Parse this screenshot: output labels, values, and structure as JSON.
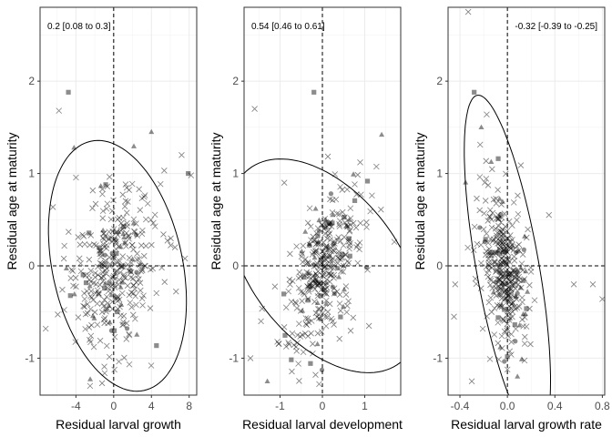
{
  "chart_data": [
    {
      "type": "scatter",
      "annotation": "0.2 [0.08 to 0.3]",
      "xlabel": "Residual larval growth",
      "ylabel": "Residual age at maturity",
      "xlim": [
        -7.8,
        8.8
      ],
      "ylim": [
        -1.4,
        2.8
      ],
      "x_ticks": [
        -4,
        0,
        4,
        8
      ],
      "x_tick_labels": [
        "-4",
        "0",
        "4",
        "8"
      ],
      "y_ticks": [
        -1,
        0,
        1,
        2
      ],
      "y_tick_labels": [
        "-1",
        "0",
        "1",
        "2"
      ],
      "grid": true,
      "reference_lines": {
        "x": 0,
        "y": 0
      },
      "ellipse": {
        "cx": 0.4,
        "cy": 0.0,
        "rx": 6.9,
        "ry": 1.38,
        "rotation_deg": 12
      },
      "points": {
        "cx": -0.3,
        "cy": -0.05,
        "sx": 2.4,
        "sy": 0.46,
        "rho": 0.2,
        "n": 360,
        "extra": [
          {
            "x": -4.8,
            "y": 1.88,
            "shape": "square"
          },
          {
            "x": -5.8,
            "y": 1.68,
            "shape": "cross"
          },
          {
            "x": -7.2,
            "y": -0.68,
            "shape": "cross"
          },
          {
            "x": 7.9,
            "y": 1.0,
            "shape": "square"
          },
          {
            "x": 8.2,
            "y": 0.98,
            "shape": "cross"
          },
          {
            "x": 7.2,
            "y": 1.2,
            "shape": "cross"
          },
          {
            "x": -2.5,
            "y": -1.3,
            "shape": "cross"
          },
          {
            "x": 4.0,
            "y": 1.45,
            "shape": "triangle"
          },
          {
            "x": -4.2,
            "y": 1.28,
            "shape": "triangle"
          },
          {
            "x": 6.5,
            "y": 0.2,
            "shape": "cross"
          }
        ]
      }
    },
    {
      "type": "scatter",
      "annotation": "0.54 [0.46 to 0.61]",
      "xlabel": "Residual larval development",
      "ylabel": "Residual age at maturity",
      "xlim": [
        -1.85,
        1.85
      ],
      "ylim": [
        -1.4,
        2.8
      ],
      "x_ticks": [
        -1,
        0,
        1
      ],
      "x_tick_labels": [
        "-1",
        "0",
        "1"
      ],
      "y_ticks": [
        -1,
        0,
        1,
        2
      ],
      "y_tick_labels": [
        "-1",
        "0",
        "1",
        "2"
      ],
      "grid": true,
      "reference_lines": {
        "x": 0,
        "y": 0
      },
      "ellipse": {
        "cx": 0.05,
        "cy": 0.0,
        "rx": 1.74,
        "ry": 1.33,
        "rotation_deg": 38
      },
      "points": {
        "cx": 0.0,
        "cy": -0.05,
        "sx": 0.5,
        "sy": 0.46,
        "rho": 0.6,
        "n": 360,
        "extra": [
          {
            "x": -0.2,
            "y": 1.88,
            "shape": "square"
          },
          {
            "x": -1.6,
            "y": 1.7,
            "shape": "cross"
          },
          {
            "x": 1.4,
            "y": 1.42,
            "shape": "triangle"
          },
          {
            "x": -1.45,
            "y": -0.6,
            "shape": "cross"
          },
          {
            "x": -1.7,
            "y": -1.0,
            "shape": "cross"
          },
          {
            "x": 1.7,
            "y": 0.26,
            "shape": "cross"
          },
          {
            "x": -0.9,
            "y": 0.9,
            "shape": "cross"
          },
          {
            "x": 1.1,
            "y": -0.65,
            "shape": "cross"
          },
          {
            "x": -1.3,
            "y": -1.25,
            "shape": "triangle"
          }
        ]
      }
    },
    {
      "type": "scatter",
      "annotation": "-0.32 [-0.39 to -0.25]",
      "xlabel": "Residual larval growth rate",
      "ylabel": "Residual age at maturity",
      "xlim": [
        -0.5,
        0.82
      ],
      "ylim": [
        -1.4,
        2.8
      ],
      "x_ticks": [
        -0.4,
        0.0,
        0.4,
        0.8
      ],
      "x_tick_labels": [
        "-0.4",
        "0.0",
        "0.4",
        "0.8"
      ],
      "y_ticks": [
        -1,
        0,
        1,
        2
      ],
      "y_tick_labels": [
        "-1",
        "0",
        "1",
        "2"
      ],
      "grid": true,
      "reference_lines": {
        "x": 0,
        "y": 0
      },
      "ellipse": {
        "cx": 0.0,
        "cy": 0.0,
        "rx": 1.46,
        "ry": 0.34,
        "rotation_deg": -80
      },
      "points": {
        "cx": -0.02,
        "cy": -0.05,
        "sx": 0.1,
        "sy": 0.44,
        "rho": -0.4,
        "n": 360,
        "extra": [
          {
            "x": -0.33,
            "y": 2.75,
            "shape": "cross"
          },
          {
            "x": -0.28,
            "y": 1.88,
            "shape": "square"
          },
          {
            "x": -0.22,
            "y": 1.5,
            "shape": "triangle"
          },
          {
            "x": 0.56,
            "y": -0.2,
            "shape": "cross"
          },
          {
            "x": 0.72,
            "y": -0.2,
            "shape": "cross"
          },
          {
            "x": 0.8,
            "y": -0.36,
            "shape": "cross"
          },
          {
            "x": -0.45,
            "y": -0.55,
            "shape": "cross"
          },
          {
            "x": -0.44,
            "y": -0.2,
            "shape": "cross"
          },
          {
            "x": 0.35,
            "y": 0.55,
            "shape": "cross"
          },
          {
            "x": -0.3,
            "y": -1.25,
            "shape": "cross"
          }
        ]
      }
    }
  ]
}
